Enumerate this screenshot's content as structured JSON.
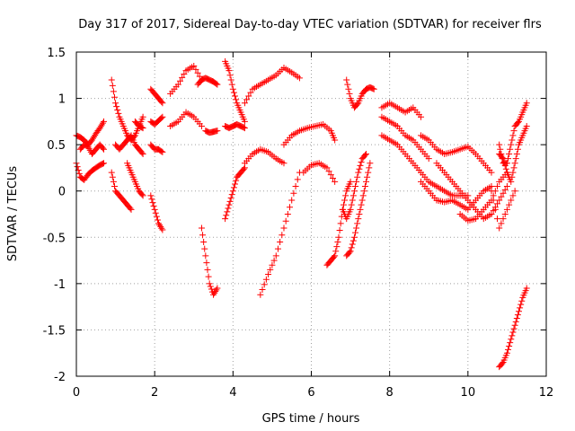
{
  "chart_data": {
    "type": "scatter",
    "title": "Day 317 of 2017, Sidereal Day-to-day VTEC variation (SDTVAR) for receiver flrs",
    "xlabel": "GPS time / hours",
    "ylabel": "SDTVAR / TECUs",
    "xlim": [
      0,
      12
    ],
    "ylim": [
      -2,
      1.5
    ],
    "xticks": [
      0,
      2,
      4,
      6,
      8,
      10,
      12
    ],
    "xtick_labels": [
      "0",
      "2",
      "4",
      "6",
      "8",
      "10",
      "12"
    ],
    "yticks": [
      -2,
      -1.5,
      -1,
      -0.5,
      0,
      0.5,
      1,
      1.5
    ],
    "ytick_labels": [
      "-2",
      "-1.5",
      "-1",
      "-0.5",
      "0",
      "0.5",
      "1",
      "1.5"
    ],
    "grid": true,
    "marker": "+",
    "color": "#ff0000",
    "series": [
      {
        "x": [
          0.0,
          0.1,
          0.2,
          0.3,
          0.4,
          0.5,
          0.6,
          0.7
        ],
        "y": [
          0.6,
          0.58,
          0.55,
          0.5,
          0.55,
          0.62,
          0.68,
          0.75
        ]
      },
      {
        "x": [
          0.0,
          0.1,
          0.2,
          0.3,
          0.4,
          0.5,
          0.6,
          0.7
        ],
        "y": [
          0.3,
          0.15,
          0.12,
          0.18,
          0.22,
          0.25,
          0.28,
          0.3
        ]
      },
      {
        "x": [
          0.1,
          0.2,
          0.3,
          0.4,
          0.5,
          0.6,
          0.7
        ],
        "y": [
          0.45,
          0.5,
          0.48,
          0.4,
          0.45,
          0.5,
          0.45
        ]
      },
      {
        "x": [
          0.9,
          1.0,
          1.1,
          1.2,
          1.3,
          1.4,
          1.5,
          1.6,
          1.7
        ],
        "y": [
          1.2,
          0.95,
          0.8,
          0.7,
          0.6,
          0.55,
          0.6,
          0.7,
          0.8
        ]
      },
      {
        "x": [
          0.9,
          1.0,
          1.1,
          1.2,
          1.3,
          1.4
        ],
        "y": [
          0.2,
          0.0,
          -0.05,
          -0.1,
          -0.15,
          -0.2
        ]
      },
      {
        "x": [
          1.0,
          1.1,
          1.2,
          1.3,
          1.4,
          1.5,
          1.6,
          1.7
        ],
        "y": [
          0.5,
          0.45,
          0.5,
          0.55,
          0.6,
          0.5,
          0.45,
          0.4
        ]
      },
      {
        "x": [
          1.3,
          1.4,
          1.5,
          1.6,
          1.7
        ],
        "y": [
          0.3,
          0.2,
          0.1,
          0.0,
          -0.05
        ]
      },
      {
        "x": [
          1.5,
          1.6,
          1.7
        ],
        "y": [
          0.75,
          0.7,
          0.68
        ]
      },
      {
        "x": [
          1.9,
          2.0,
          2.1,
          2.2
        ],
        "y": [
          1.1,
          1.05,
          1.0,
          0.95
        ]
      },
      {
        "x": [
          1.9,
          2.0,
          2.1,
          2.2
        ],
        "y": [
          0.75,
          0.72,
          0.76,
          0.8
        ]
      },
      {
        "x": [
          1.9,
          2.0,
          2.1,
          2.2
        ],
        "y": [
          0.5,
          0.45,
          0.45,
          0.42
        ]
      },
      {
        "x": [
          1.9,
          2.0,
          2.1,
          2.2
        ],
        "y": [
          -0.05,
          -0.2,
          -0.35,
          -0.42
        ]
      },
      {
        "x": [
          2.4,
          2.6,
          2.8,
          3.0,
          3.2
        ],
        "y": [
          1.05,
          1.15,
          1.3,
          1.35,
          1.2
        ]
      },
      {
        "x": [
          2.4,
          2.6,
          2.8,
          3.0,
          3.2
        ],
        "y": [
          0.7,
          0.75,
          0.85,
          0.8,
          0.7
        ]
      },
      {
        "x": [
          3.1,
          3.2,
          3.3,
          3.4,
          3.5,
          3.6
        ],
        "y": [
          1.15,
          1.2,
          1.22,
          1.2,
          1.18,
          1.15
        ]
      },
      {
        "x": [
          3.3,
          3.4,
          3.5,
          3.6
        ],
        "y": [
          0.65,
          0.63,
          0.64,
          0.65
        ]
      },
      {
        "x": [
          3.2,
          3.3,
          3.4,
          3.5,
          3.6
        ],
        "y": [
          -0.4,
          -0.7,
          -1.0,
          -1.12,
          -1.05
        ]
      },
      {
        "x": [
          3.8,
          3.9,
          4.0,
          4.1,
          4.2,
          4.3
        ],
        "y": [
          1.4,
          1.3,
          1.1,
          0.95,
          0.85,
          0.75
        ]
      },
      {
        "x": [
          3.8,
          3.9,
          4.0,
          4.1,
          4.2,
          4.3
        ],
        "y": [
          0.7,
          0.68,
          0.7,
          0.72,
          0.7,
          0.68
        ]
      },
      {
        "x": [
          3.8,
          3.9,
          4.0,
          4.1,
          4.2,
          4.3
        ],
        "y": [
          -0.3,
          -0.15,
          0.0,
          0.15,
          0.2,
          0.25
        ]
      },
      {
        "x": [
          4.3,
          4.5,
          4.7,
          4.9,
          5.1,
          5.3,
          5.5,
          5.7
        ],
        "y": [
          0.95,
          1.1,
          1.15,
          1.2,
          1.25,
          1.33,
          1.28,
          1.22
        ]
      },
      {
        "x": [
          4.3,
          4.5,
          4.7,
          4.9,
          5.1,
          5.3
        ],
        "y": [
          0.3,
          0.4,
          0.45,
          0.42,
          0.35,
          0.3
        ]
      },
      {
        "x": [
          4.7,
          4.9,
          5.1,
          5.3,
          5.5,
          5.7
        ],
        "y": [
          -1.12,
          -0.9,
          -0.7,
          -0.4,
          -0.1,
          0.2
        ]
      },
      {
        "x": [
          5.3,
          5.5,
          5.7,
          5.9,
          6.1,
          6.3,
          6.5,
          6.6
        ],
        "y": [
          0.5,
          0.6,
          0.65,
          0.68,
          0.7,
          0.72,
          0.65,
          0.55
        ]
      },
      {
        "x": [
          5.8,
          6.0,
          6.2,
          6.4,
          6.6
        ],
        "y": [
          0.2,
          0.28,
          0.3,
          0.25,
          0.1
        ]
      },
      {
        "x": [
          6.4,
          6.5,
          6.6,
          6.7,
          6.8,
          6.9,
          7.0
        ],
        "y": [
          -0.8,
          -0.75,
          -0.7,
          -0.5,
          -0.2,
          0.0,
          0.1
        ]
      },
      {
        "x": [
          6.9,
          7.0,
          7.1,
          7.2,
          7.3,
          7.4,
          7.5,
          7.6
        ],
        "y": [
          1.2,
          1.0,
          0.9,
          0.95,
          1.05,
          1.1,
          1.12,
          1.1
        ]
      },
      {
        "x": [
          6.8,
          6.9,
          7.0,
          7.1,
          7.2,
          7.3,
          7.4
        ],
        "y": [
          -0.2,
          -0.3,
          -0.2,
          0.0,
          0.2,
          0.35,
          0.4
        ]
      },
      {
        "x": [
          6.9,
          7.0,
          7.1,
          7.2,
          7.3,
          7.4,
          7.5
        ],
        "y": [
          -0.7,
          -0.65,
          -0.5,
          -0.3,
          -0.1,
          0.1,
          0.3
        ]
      },
      {
        "x": [
          7.8,
          8.0,
          8.2,
          8.4,
          8.6,
          8.8
        ],
        "y": [
          0.9,
          0.95,
          0.9,
          0.85,
          0.9,
          0.8
        ]
      },
      {
        "x": [
          7.8,
          8.0,
          8.2,
          8.4,
          8.6,
          8.8,
          9.0
        ],
        "y": [
          0.8,
          0.75,
          0.7,
          0.6,
          0.55,
          0.45,
          0.35
        ]
      },
      {
        "x": [
          7.8,
          8.0,
          8.2,
          8.4,
          8.6,
          8.8,
          9.0,
          9.2,
          9.4,
          9.6,
          9.8,
          10.0
        ],
        "y": [
          0.6,
          0.55,
          0.5,
          0.4,
          0.3,
          0.2,
          0.1,
          0.05,
          0.0,
          -0.05,
          -0.05,
          -0.05
        ]
      },
      {
        "x": [
          8.8,
          9.0,
          9.2,
          9.4,
          9.6,
          9.8,
          10.0,
          10.2,
          10.4,
          10.6
        ],
        "y": [
          0.6,
          0.55,
          0.45,
          0.4,
          0.42,
          0.45,
          0.48,
          0.4,
          0.3,
          0.2
        ]
      },
      {
        "x": [
          8.8,
          9.0,
          9.2,
          9.4,
          9.6,
          9.8,
          10.0,
          10.2,
          10.4,
          10.6
        ],
        "y": [
          0.1,
          0.0,
          -0.1,
          -0.12,
          -0.1,
          -0.15,
          -0.2,
          -0.1,
          0.0,
          0.05
        ]
      },
      {
        "x": [
          9.2,
          9.4,
          9.6,
          9.8,
          10.0,
          10.2,
          10.4,
          10.6,
          10.8,
          11.0
        ],
        "y": [
          0.3,
          0.2,
          0.1,
          0.0,
          -0.1,
          -0.2,
          -0.3,
          -0.25,
          -0.1,
          0.05
        ]
      },
      {
        "x": [
          9.8,
          10.0,
          10.2,
          10.4,
          10.6,
          10.8,
          11.0
        ],
        "y": [
          -0.25,
          -0.32,
          -0.3,
          -0.2,
          -0.1,
          0.1,
          0.2
        ]
      },
      {
        "x": [
          10.6,
          10.8,
          11.0,
          11.2
        ],
        "y": [
          0.0,
          -0.4,
          -0.2,
          0.0
        ]
      },
      {
        "x": [
          10.8,
          10.9,
          11.0,
          11.1,
          11.2,
          11.3,
          11.4,
          11.5
        ],
        "y": [
          0.5,
          0.3,
          0.3,
          0.5,
          0.7,
          0.75,
          0.85,
          0.95
        ]
      },
      {
        "x": [
          10.8,
          10.9,
          11.0,
          11.1,
          11.2,
          11.3,
          11.4,
          11.5
        ],
        "y": [
          0.4,
          0.35,
          0.2,
          0.1,
          0.3,
          0.5,
          0.6,
          0.7
        ]
      },
      {
        "x": [
          10.8,
          10.9,
          11.0,
          11.1,
          11.2,
          11.3,
          11.4,
          11.5
        ],
        "y": [
          -1.9,
          -1.85,
          -1.75,
          -1.6,
          -1.45,
          -1.3,
          -1.15,
          -1.05
        ]
      }
    ]
  }
}
